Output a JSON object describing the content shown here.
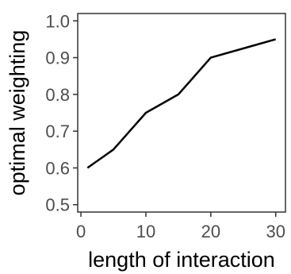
{
  "chart_data": {
    "type": "line",
    "title": "",
    "xlabel": "length of interaction",
    "ylabel": "optimal weighting",
    "x": [
      1,
      5,
      10,
      15,
      20,
      25,
      30
    ],
    "series": [
      {
        "values": [
          0.6,
          0.65,
          0.75,
          0.8,
          0.9,
          0.925,
          0.95
        ]
      }
    ],
    "xlim": [
      -0.5,
      31.5
    ],
    "ylim": [
      0.48,
      1.02
    ],
    "xticks": [
      0,
      10,
      20,
      30
    ],
    "xtick_labels": [
      "0",
      "10",
      "20",
      "30"
    ],
    "yticks": [
      0.5,
      0.6,
      0.7,
      0.8,
      0.9,
      1.0
    ],
    "ytick_labels": [
      "0.5",
      "0.6",
      "0.7",
      "0.8",
      "0.9",
      "1.0"
    ],
    "grid": false,
    "legend": "none",
    "colors": {
      "line": "#000000",
      "axis": "#333333",
      "tick_text": "#4d4d4d"
    }
  }
}
